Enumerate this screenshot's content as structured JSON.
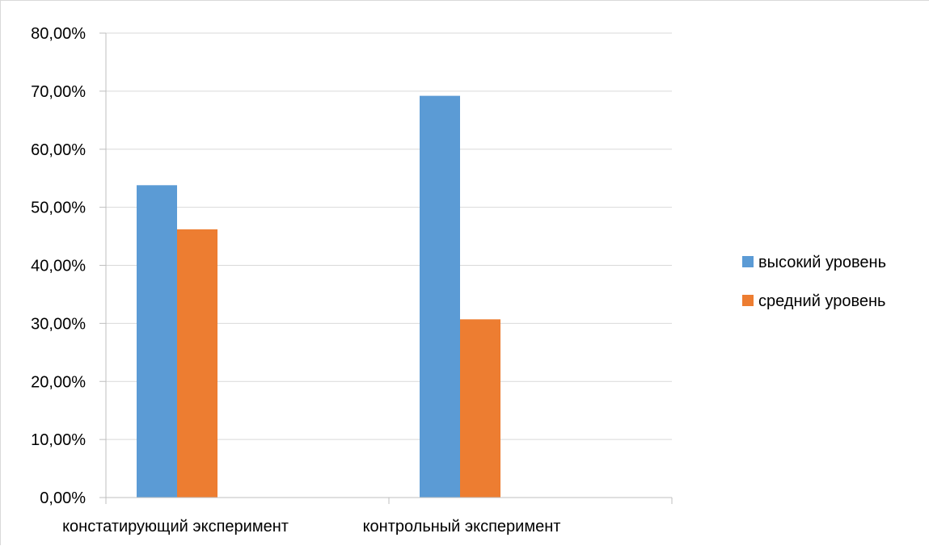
{
  "chart_data": {
    "type": "bar",
    "categories": [
      "констатирующий эксперимент",
      "контрольный эксперимент"
    ],
    "series": [
      {
        "name": "высокий уровень",
        "values": [
          0.538,
          0.692
        ],
        "color": "#5b9bd5"
      },
      {
        "name": "средний уровень",
        "values": [
          0.462,
          0.307
        ],
        "color": "#ed7d31"
      }
    ],
    "ylim": [
      0,
      0.8
    ],
    "yticks": [
      0,
      0.1,
      0.2,
      0.3,
      0.4,
      0.5,
      0.6,
      0.7,
      0.8
    ],
    "ytick_labels": [
      "0,00%",
      "10,00%",
      "20,00%",
      "30,00%",
      "40,00%",
      "50,00%",
      "60,00%",
      "70,00%",
      "80,00%"
    ],
    "grid": true,
    "legend_position": "right",
    "title": "",
    "xlabel": "",
    "ylabel": ""
  }
}
